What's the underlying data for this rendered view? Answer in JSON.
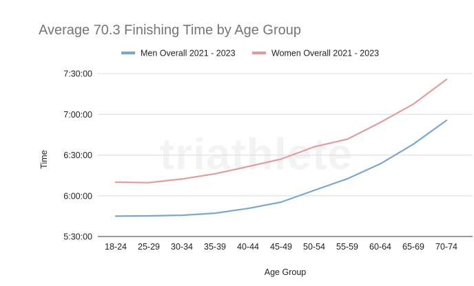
{
  "chart_data": {
    "type": "line",
    "title": "Average 70.3 Finishing Time by Age Group",
    "xlabel": "Age Group",
    "ylabel": "Time",
    "categories": [
      "18-24",
      "25-29",
      "30-34",
      "35-39",
      "40-44",
      "45-49",
      "50-54",
      "55-59",
      "60-64",
      "65-69",
      "70-74"
    ],
    "y_ticks": [
      "5:30:00",
      "6:00:00",
      "6:30:00",
      "7:00:00",
      "7:30:00"
    ],
    "ylim": [
      "5:30:00",
      "7:30:00"
    ],
    "grid": true,
    "legend_position": "top",
    "series": [
      {
        "name": "Men Overall 2021 - 2023",
        "color": "#79a6d2",
        "values": [
          "5:45:00",
          "5:45:12",
          "5:45:40",
          "5:47:10",
          "5:50:40",
          "5:55:20",
          "6:04:00",
          "6:12:30",
          "6:23:30",
          "6:38:00",
          "6:55:30"
        ]
      },
      {
        "name": "Women Overall 2021 - 2023",
        "color": "#e39b9b",
        "values": [
          "6:10:00",
          "6:09:40",
          "6:12:20",
          "6:16:10",
          "6:21:30",
          "6:27:00",
          "6:36:00",
          "6:41:40",
          "6:54:00",
          "7:07:30",
          "7:25:40"
        ]
      }
    ]
  },
  "watermark": "triathlete"
}
